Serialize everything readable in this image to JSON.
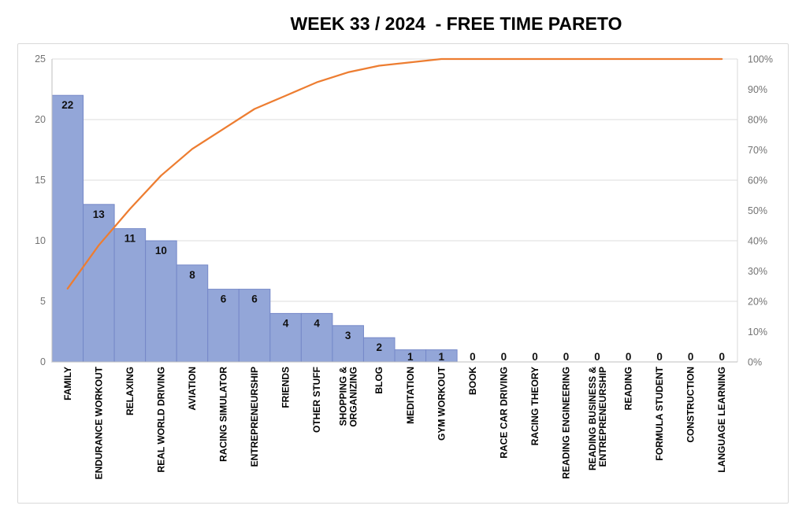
{
  "title": "WEEK 33 / 2024  - FREE TIME PARETO",
  "chart_data": {
    "type": "pareto",
    "title": "WEEK 33 / 2024  - FREE TIME PARETO",
    "categories": [
      "FAMILY",
      "ENDURANCE WORKOUT",
      "RELAXING",
      "REAL WORLD DRIVING",
      "AVIATION",
      "RACING SIMULATOR",
      "ENTREPRENEURSHIP",
      "FRIENDS",
      "OTHER STUFF",
      "SHOPPING &\nORGANIZING",
      "BLOG",
      "MEDITATION",
      "GYM WORKOUT",
      "BOOK",
      "RACE CAR DRIVING",
      "RACING THEORY",
      "READING ENGINEERING",
      "READING BUSINESS &\nENTREPRENEURSHIP",
      "READING",
      "FORMULA STUDENT",
      "CONSTRUCTION",
      "LANGUAGE LEARNING"
    ],
    "values": [
      22,
      13,
      11,
      10,
      8,
      6,
      6,
      4,
      4,
      3,
      2,
      1,
      1,
      0,
      0,
      0,
      0,
      0,
      0,
      0,
      0,
      0
    ],
    "cumulative_pct": [
      24.2,
      38.5,
      50.5,
      61.5,
      70.3,
      76.9,
      83.5,
      87.9,
      92.3,
      95.6,
      97.8,
      98.9,
      100,
      100,
      100,
      100,
      100,
      100,
      100,
      100,
      100,
      100
    ],
    "left_axis": {
      "min": 0,
      "max": 25,
      "step": 5,
      "ticks": [
        "0",
        "5",
        "10",
        "15",
        "20",
        "25"
      ]
    },
    "right_axis": {
      "min": 0,
      "max": 100,
      "step": 10,
      "ticks": [
        "0%",
        "10%",
        "20%",
        "30%",
        "40%",
        "50%",
        "60%",
        "70%",
        "80%",
        "90%",
        "100%"
      ]
    },
    "legend": "none",
    "grid": "horizontal",
    "colors": {
      "bar_fill": "#93a6d8",
      "bar_border": "#7588c8",
      "line": "#ed7d31",
      "gridline": "#dedede",
      "axis_line": "#bfbfbf",
      "plot_border": "#d9d9d9",
      "tick_label": "#737373",
      "data_label": "#111111",
      "category_label": "#000000"
    }
  }
}
